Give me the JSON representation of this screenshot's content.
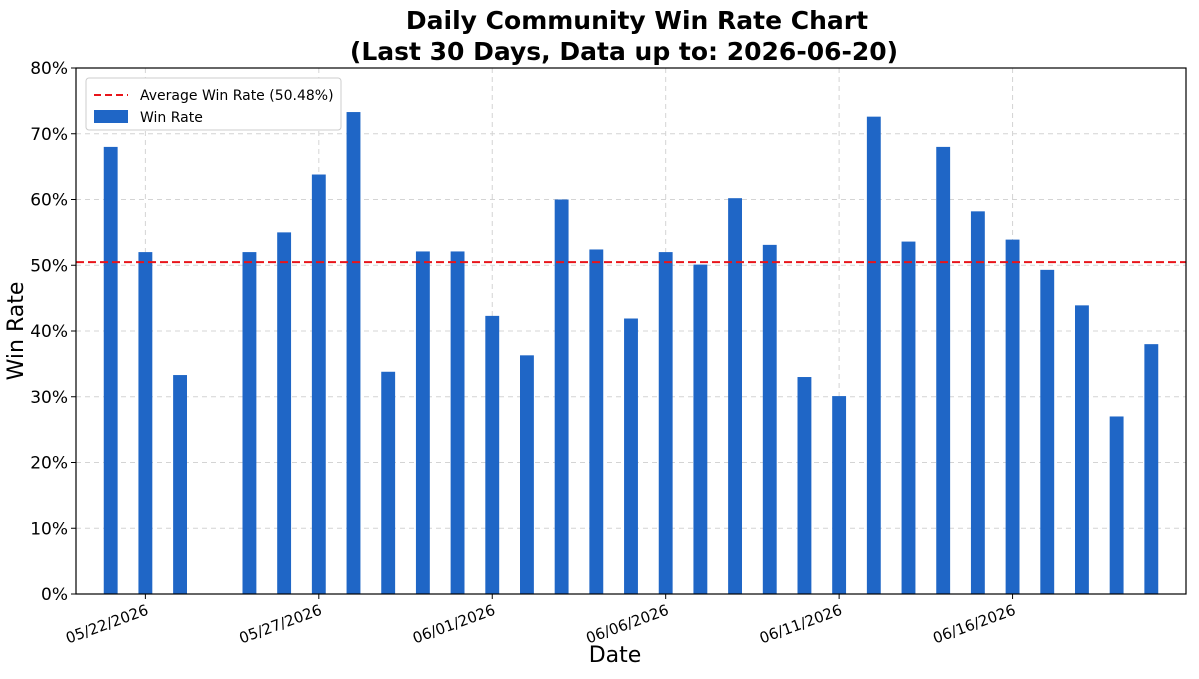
{
  "chart_data": {
    "type": "bar",
    "title_lines": [
      "Daily Community Win Rate Chart",
      "(Last 30 Days, Data up to: 2026-06-20)"
    ],
    "xlabel": "Date",
    "ylabel": "Win Rate",
    "ylim": [
      0,
      80
    ],
    "y_ticks": [
      0,
      10,
      20,
      30,
      40,
      50,
      60,
      70,
      80
    ],
    "y_tick_format": "{v}%",
    "x_tick_labels": [
      "05/22/2026",
      "05/27/2026",
      "06/01/2026",
      "06/06/2026",
      "06/11/2026",
      "06/16/2026"
    ],
    "x_tick_dates": [
      "2026-05-22",
      "2026-05-27",
      "2026-06-01",
      "2026-06-06",
      "2026-06-11",
      "2026-06-16"
    ],
    "x_range": [
      "2026-05-20",
      "2026-06-21"
    ],
    "grid": true,
    "legend_position": "top-left",
    "series": [
      {
        "name": "Win Rate",
        "color": "#1f66c6",
        "x": [
          "2026-05-21",
          "2026-05-22",
          "2026-05-23",
          "2026-05-25",
          "2026-05-26",
          "2026-05-27",
          "2026-05-28",
          "2026-05-29",
          "2026-05-30",
          "2026-05-31",
          "2026-06-01",
          "2026-06-02",
          "2026-06-03",
          "2026-06-04",
          "2026-06-05",
          "2026-06-06",
          "2026-06-07",
          "2026-06-08",
          "2026-06-09",
          "2026-06-10",
          "2026-06-11",
          "2026-06-12",
          "2026-06-13",
          "2026-06-14",
          "2026-06-15",
          "2026-06-16",
          "2026-06-17",
          "2026-06-18",
          "2026-06-19",
          "2026-06-20"
        ],
        "values": [
          68.0,
          52.0,
          33.3,
          52.0,
          55.0,
          63.8,
          73.3,
          33.8,
          52.1,
          52.1,
          42.3,
          36.3,
          60.0,
          52.4,
          41.9,
          52.0,
          50.1,
          60.2,
          53.1,
          33.0,
          30.1,
          72.6,
          53.6,
          68.0,
          58.2,
          53.9,
          49.3,
          43.9,
          27.0,
          38.0
        ]
      }
    ],
    "reference_line": {
      "name": "Average Win Rate (50.48%)",
      "value": 50.48,
      "color": "#e8141a",
      "style": "dashed"
    }
  }
}
